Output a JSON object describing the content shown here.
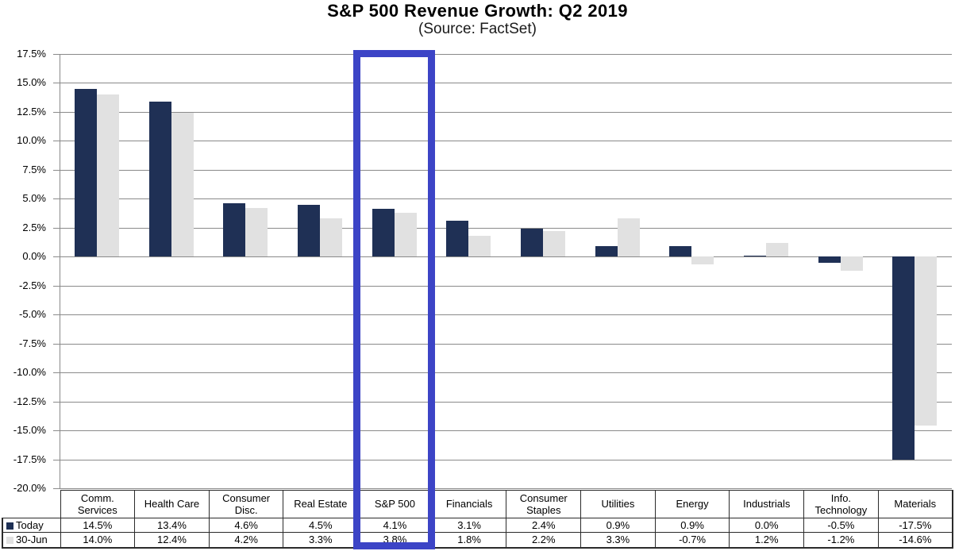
{
  "title": "S&P 500 Revenue Growth: Q2 2019",
  "subtitle": "(Source: FactSet)",
  "chart_data": {
    "type": "bar",
    "categories": [
      "Comm. Services",
      "Health Care",
      "Consumer Disc.",
      "Real Estate",
      "S&P 500",
      "Financials",
      "Consumer Staples",
      "Utilities",
      "Energy",
      "Industrials",
      "Info. Technology",
      "Materials"
    ],
    "series": [
      {
        "name": "Today",
        "color": "#1f3055",
        "values": [
          14.5,
          13.4,
          4.6,
          4.5,
          4.1,
          3.1,
          2.4,
          0.9,
          0.9,
          0.0,
          -0.5,
          -17.5
        ]
      },
      {
        "name": "30-Jun",
        "color": "#e1e1e1",
        "values": [
          14.0,
          12.4,
          4.2,
          3.3,
          3.8,
          1.8,
          2.2,
          3.3,
          -0.7,
          1.2,
          -1.2,
          -14.6
        ]
      }
    ],
    "title": "S&P 500 Revenue Growth: Q2 2019",
    "subtitle": "(Source: FactSet)",
    "xlabel": "",
    "ylabel": "",
    "ylim": [
      -20,
      17.5
    ],
    "ytick_step": 2.5,
    "ytick_labels": [
      "17.5%",
      "15.0%",
      "12.5%",
      "10.0%",
      "7.5%",
      "5.0%",
      "2.5%",
      "0.0%",
      "-2.5%",
      "-5.0%",
      "-7.5%",
      "-10.0%",
      "-12.5%",
      "-15.0%",
      "-17.5%",
      "-20.0%"
    ],
    "grid": true,
    "legend_position": "table-rows-left",
    "value_suffix": "%",
    "highlighted_category": "S&P 500"
  },
  "colors": {
    "bar_today": "#1f3055",
    "bar_30jun": "#e1e1e1",
    "gridline": "#8a8a8a",
    "axis": "#8a8a8a",
    "table_border": "#2b2b2b",
    "highlight_box": "#3c44c6",
    "background": "#ffffff",
    "text": "#000000"
  }
}
